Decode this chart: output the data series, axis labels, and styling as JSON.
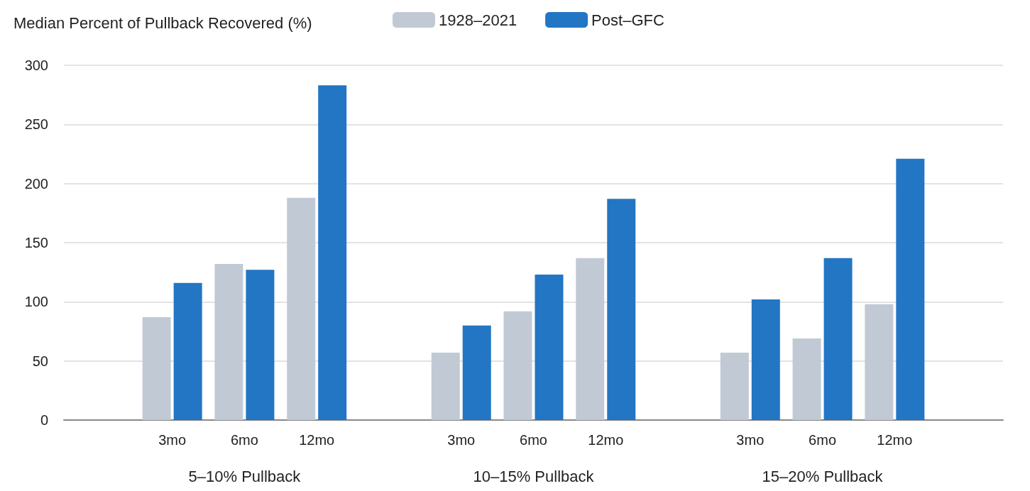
{
  "chart_data": {
    "type": "bar",
    "ylabel": "Median Percent of Pullback Recovered (%)",
    "categories": [
      null,
      "3mo",
      "6mo",
      "12mo",
      null,
      "3mo",
      "6mo",
      "12mo",
      null,
      "3mo",
      "6mo",
      "12mo",
      null
    ],
    "series": [
      {
        "name": "1928–2021",
        "color": "#c1cad4",
        "values": [
          null,
          87,
          132,
          188,
          null,
          57,
          92,
          137,
          null,
          57,
          69,
          98,
          null
        ]
      },
      {
        "name": "Post–GFC",
        "color": "#2276c4",
        "values": [
          null,
          116,
          127,
          283,
          null,
          80,
          123,
          187,
          null,
          102,
          137,
          221,
          null
        ]
      }
    ],
    "annotations": [
      "5–10% Pullback",
      "10–15% Pullback",
      "15–20% Pullback"
    ],
    "ylim": [
      0,
      300
    ],
    "yticks": [
      0,
      50,
      100,
      150,
      200,
      250,
      300
    ],
    "grid": "y",
    "legend": "top"
  }
}
